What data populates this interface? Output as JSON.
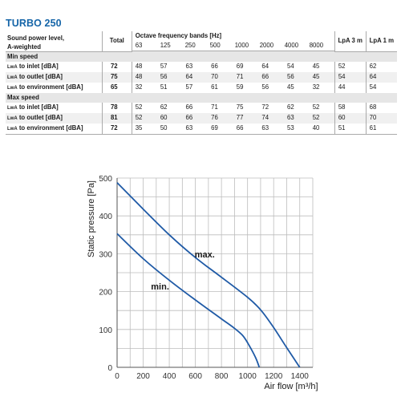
{
  "product": {
    "title": "TURBO 250"
  },
  "table": {
    "header": {
      "label_line1": "Sound power level,",
      "label_line2": "A-weighted",
      "total": "Total",
      "octave_title": "Octave frequency bands [Hz]",
      "bands": [
        "63",
        "125",
        "250",
        "500",
        "1000",
        "2000",
        "4000",
        "8000"
      ],
      "lpa3": "LpA 3 m",
      "lpa1": "LpA 1 m"
    },
    "sections": [
      {
        "title": "Min speed",
        "rows": [
          {
            "prefix": "LwA",
            "label": " to inlet [dBA]",
            "total": "72",
            "bands": [
              "48",
              "57",
              "63",
              "66",
              "69",
              "64",
              "54",
              "45"
            ],
            "lpa3": "52",
            "lpa1": "62"
          },
          {
            "prefix": "LwA",
            "label": " to outlet [dBA]",
            "total": "75",
            "bands": [
              "48",
              "56",
              "64",
              "70",
              "71",
              "66",
              "56",
              "45"
            ],
            "lpa3": "54",
            "lpa1": "64"
          },
          {
            "prefix": "LwA",
            "label": " to environment [dBA]",
            "total": "65",
            "bands": [
              "32",
              "51",
              "57",
              "61",
              "59",
              "56",
              "45",
              "32"
            ],
            "lpa3": "44",
            "lpa1": "54"
          }
        ]
      },
      {
        "title": "Max speed",
        "rows": [
          {
            "prefix": "LwA",
            "label": " to inlet [dBA]",
            "total": "78",
            "bands": [
              "52",
              "62",
              "66",
              "71",
              "75",
              "72",
              "62",
              "52"
            ],
            "lpa3": "58",
            "lpa1": "68"
          },
          {
            "prefix": "LwA",
            "label": " to outlet [dBA]",
            "total": "81",
            "bands": [
              "52",
              "60",
              "66",
              "76",
              "77",
              "74",
              "63",
              "52"
            ],
            "lpa3": "60",
            "lpa1": "70"
          },
          {
            "prefix": "LwA",
            "label": " to environment [dBA]",
            "total": "72",
            "bands": [
              "35",
              "50",
              "63",
              "69",
              "66",
              "63",
              "53",
              "40"
            ],
            "lpa3": "51",
            "lpa1": "61"
          }
        ]
      }
    ]
  },
  "chart_data": {
    "type": "line",
    "xlabel": "Air flow [m³/h]",
    "ylabel": "Static pressure [Pa]",
    "xlim": [
      0,
      1500
    ],
    "ylim": [
      0,
      500
    ],
    "xticks": [
      "0",
      "200",
      "400",
      "600",
      "800",
      "1000",
      "1200",
      "1400"
    ],
    "yticks": [
      "0",
      "100",
      "200",
      "300",
      "400",
      "500"
    ],
    "grid": true,
    "line_color": "#1f5aa6",
    "series": [
      {
        "name": "max.",
        "x": [
          0,
          200,
          400,
          600,
          800,
          1000,
          1100,
          1200,
          1300,
          1400
        ],
        "y": [
          488,
          418,
          350,
          290,
          238,
          185,
          152,
          105,
          52,
          0
        ]
      },
      {
        "name": "min.",
        "x": [
          0,
          200,
          400,
          600,
          800,
          900,
          960,
          1000,
          1060,
          1090
        ],
        "y": [
          353,
          287,
          230,
          178,
          128,
          103,
          85,
          65,
          27,
          0
        ]
      }
    ]
  }
}
